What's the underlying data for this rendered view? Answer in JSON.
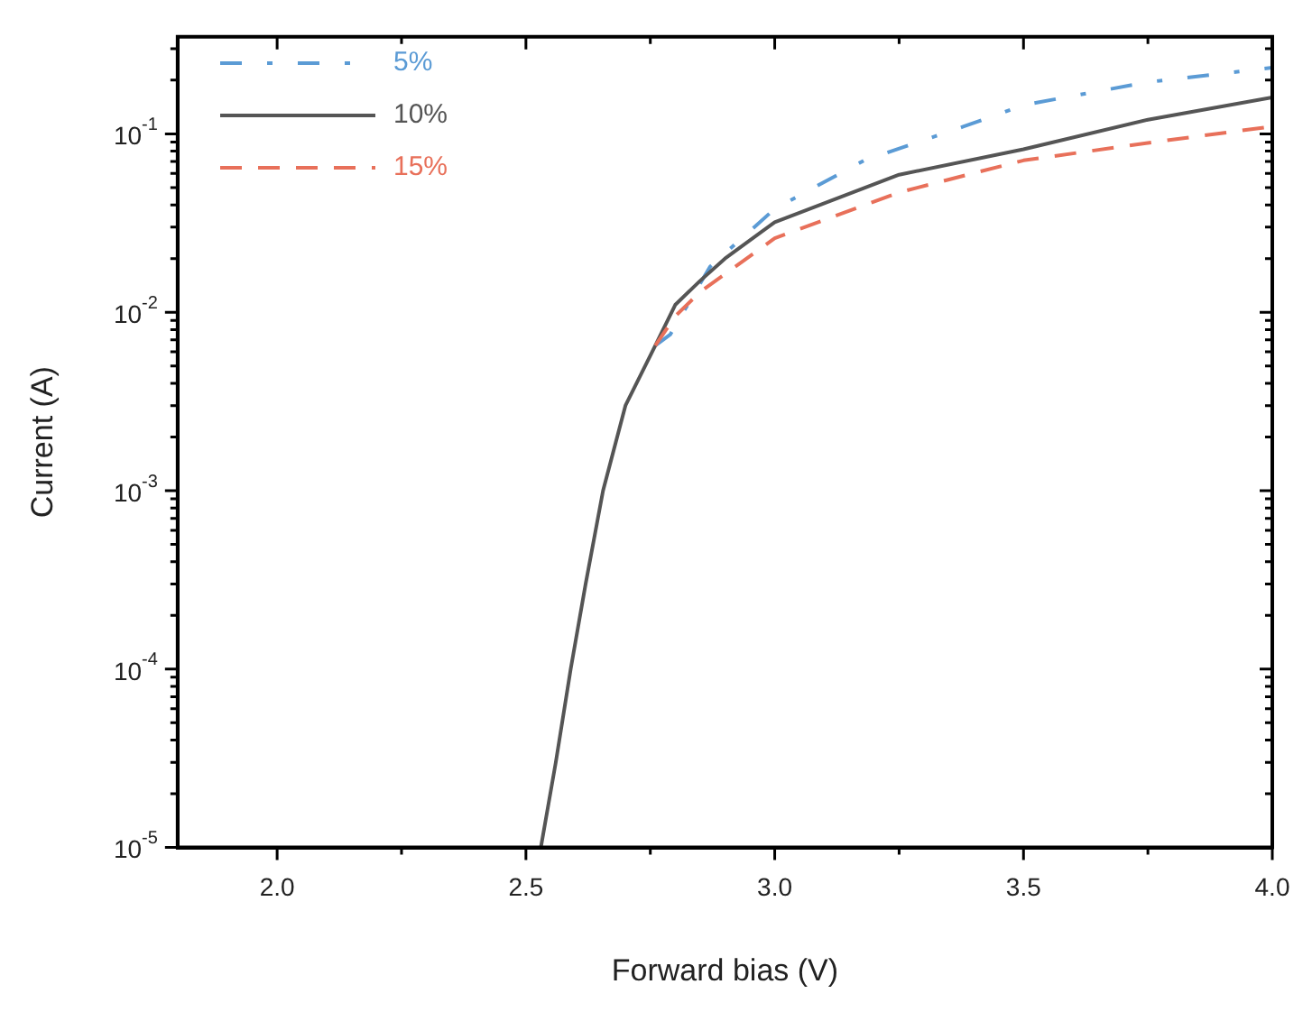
{
  "chart_data": {
    "type": "line",
    "xlabel": "Forward bias (V)",
    "ylabel": "Current (A)",
    "log": "y",
    "grid": false,
    "legend": "top left",
    "marker": "none",
    "xlim": [
      1.8,
      4.0
    ],
    "xticks": [
      {
        "value": 2.0,
        "label": "2.0"
      },
      {
        "value": 2.25,
        "label": null
      },
      {
        "value": 2.5,
        "label": "2.5"
      },
      {
        "value": 2.75,
        "label": null
      },
      {
        "value": 3.0,
        "label": "3.0"
      },
      {
        "value": 3.25,
        "label": null
      },
      {
        "value": 3.5,
        "label": "3.5"
      },
      {
        "value": 3.75,
        "label": null
      },
      {
        "value": 4.0,
        "label": "4.0"
      }
    ],
    "ylim": [
      1e-05,
      0.35
    ],
    "yticks": [
      {
        "value": 1e-05,
        "label": "10$^{-5}$"
      },
      {
        "value": 2e-05,
        "label": null
      },
      {
        "value": 3e-05,
        "label": null
      },
      {
        "value": 4e-05,
        "label": null
      },
      {
        "value": 5e-05,
        "label": null
      },
      {
        "value": 6e-05,
        "label": null
      },
      {
        "value": 7e-05,
        "label": null
      },
      {
        "value": 8e-05,
        "label": null
      },
      {
        "value": 9e-05,
        "label": null
      },
      {
        "value": 0.0001,
        "label": "10$^{-4}$"
      },
      {
        "value": 0.0002,
        "label": null
      },
      {
        "value": 0.0003,
        "label": null
      },
      {
        "value": 0.0004,
        "label": null
      },
      {
        "value": 0.0005,
        "label": null
      },
      {
        "value": 0.0006,
        "label": null
      },
      {
        "value": 0.0007,
        "label": null
      },
      {
        "value": 0.0008,
        "label": null
      },
      {
        "value": 0.0009,
        "label": null
      },
      {
        "value": 0.001,
        "label": "10$^{-3}$"
      },
      {
        "value": 0.002,
        "label": null
      },
      {
        "value": 0.003,
        "label": null
      },
      {
        "value": 0.004,
        "label": null
      },
      {
        "value": 0.005,
        "label": null
      },
      {
        "value": 0.006,
        "label": null
      },
      {
        "value": 0.007,
        "label": null
      },
      {
        "value": 0.008,
        "label": null
      },
      {
        "value": 0.009,
        "label": null
      },
      {
        "value": 0.01,
        "label": "10$^{-2}$"
      },
      {
        "value": 0.02,
        "label": null
      },
      {
        "value": 0.03,
        "label": null
      },
      {
        "value": 0.04,
        "label": null
      },
      {
        "value": 0.05,
        "label": null
      },
      {
        "value": 0.06,
        "label": null
      },
      {
        "value": 0.07,
        "label": null
      },
      {
        "value": 0.08,
        "label": null
      },
      {
        "value": 0.09,
        "label": null
      },
      {
        "value": 0.1,
        "label": "10$^{-1}$"
      },
      {
        "value": 0.2,
        "label": null
      },
      {
        "value": 0.3,
        "label": null
      }
    ],
    "series": [
      {
        "name": "5%",
        "color": "#5b9bd5",
        "line_style": "dashdot",
        "x": [
          2.76,
          2.79,
          2.87,
          3.0,
          3.18,
          3.38,
          3.5,
          3.75,
          4.0
        ],
        "values": [
          0.0065,
          0.0075,
          0.018,
          0.038,
          0.071,
          0.11,
          0.145,
          0.195,
          0.235
        ]
      },
      {
        "name": "10%",
        "color": "#555555",
        "line_style": "solid",
        "x": [
          2.53,
          2.56,
          2.59,
          2.62,
          2.655,
          2.7,
          2.76,
          2.8,
          2.85,
          2.9,
          3.0,
          3.25,
          3.5,
          3.75,
          4.0
        ],
        "values": [
          1e-05,
          3e-05,
          0.0001,
          0.0003,
          0.001,
          0.003,
          0.0065,
          0.011,
          0.015,
          0.02,
          0.032,
          0.059,
          0.082,
          0.12,
          0.16
        ]
      },
      {
        "name": "15%",
        "color": "#e8705a",
        "line_style": "dashed",
        "x": [
          2.76,
          2.8,
          2.85,
          3.0,
          3.25,
          3.5,
          3.75,
          4.0
        ],
        "values": [
          0.0065,
          0.0095,
          0.013,
          0.026,
          0.047,
          0.071,
          0.089,
          0.11
        ]
      }
    ]
  }
}
